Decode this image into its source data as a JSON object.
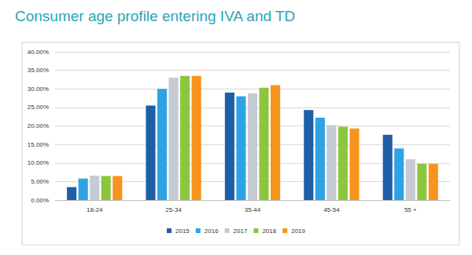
{
  "chart_data": {
    "type": "bar",
    "title": "Consumer age profile entering IVA and TD",
    "categories": [
      "18-24",
      "25-34",
      "35-44",
      "45-54",
      "55 +"
    ],
    "series": [
      {
        "name": "2015",
        "color": "#1f5fa8",
        "values": [
          3.5,
          25.5,
          29.0,
          24.3,
          17.6
        ]
      },
      {
        "name": "2016",
        "color": "#2ea3e3",
        "values": [
          5.8,
          30.0,
          28.0,
          22.2,
          13.9
        ]
      },
      {
        "name": "2017",
        "color": "#c5cad3",
        "values": [
          6.6,
          33.0,
          28.8,
          20.2,
          11.0
        ]
      },
      {
        "name": "2018",
        "color": "#8cc63f",
        "values": [
          6.5,
          33.5,
          30.3,
          19.8,
          9.8
        ]
      },
      {
        "name": "2019",
        "color": "#f7941d",
        "values": [
          6.5,
          33.5,
          31.0,
          19.3,
          9.8
        ]
      }
    ],
    "ylim": [
      0,
      40
    ],
    "yticks": [
      {
        "value": 0,
        "label": "0.00%"
      },
      {
        "value": 5,
        "label": "5.00%"
      },
      {
        "value": 10,
        "label": "10.00%"
      },
      {
        "value": 15,
        "label": "15.00%"
      },
      {
        "value": 20,
        "label": "20.00%"
      },
      {
        "value": 25,
        "label": "25.00%"
      },
      {
        "value": 30,
        "label": "30.00%"
      },
      {
        "value": 35,
        "label": "35.00%"
      },
      {
        "value": 40,
        "label": "40.00%"
      }
    ],
    "grid": true,
    "legend": "bottom"
  }
}
